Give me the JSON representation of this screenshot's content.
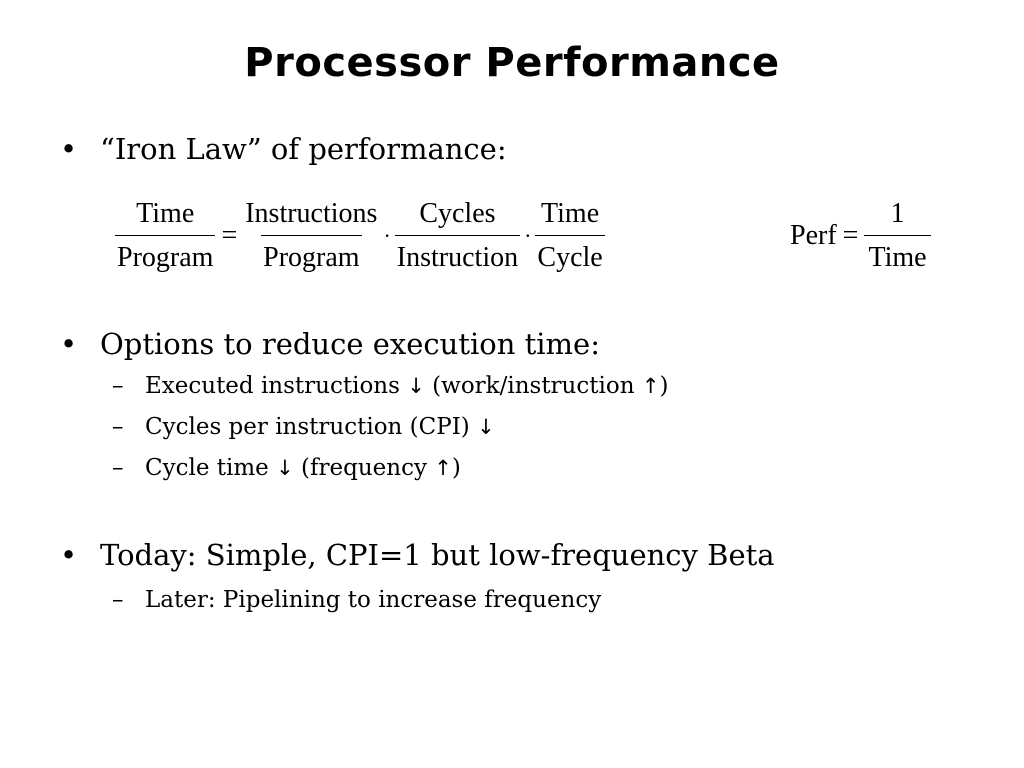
{
  "slide": {
    "title": "Processor Performance",
    "bullets": [
      {
        "text": "“Iron Law” of performance:"
      },
      {
        "text": "Options to reduce execution time:"
      },
      {
        "text": "Today: Simple, CPI=1 but low-frequency Beta"
      }
    ],
    "subitems": {
      "executed_instructions": {
        "before": "Executed instructions",
        "arrow1": "↓",
        "middle": "(work/instruction",
        "arrow2": "↑",
        "after": ")"
      },
      "cpi": {
        "before": "Cycles per instruction (CPI)",
        "arrow1": "↓"
      },
      "cycle_time": {
        "before": "Cycle time",
        "arrow1": "↓",
        "middle": "(frequency",
        "arrow2": "↑",
        "after": ")"
      },
      "later": {
        "text": "Later: Pipelining to increase frequency"
      }
    },
    "iron_law": {
      "lhs_num": "Time",
      "lhs_den": "Program",
      "equals": "=",
      "t1_num": "Instructions",
      "t1_den": "Program",
      "dot": "·",
      "t2_num": "Cycles",
      "t2_den": "Instruction",
      "t3_num": "Time",
      "t3_den": "Cycle"
    },
    "perf": {
      "label": "Perf",
      "equals": "=",
      "num": "1",
      "den": "Time"
    },
    "bullet_char": "•",
    "dash_char": "–"
  }
}
